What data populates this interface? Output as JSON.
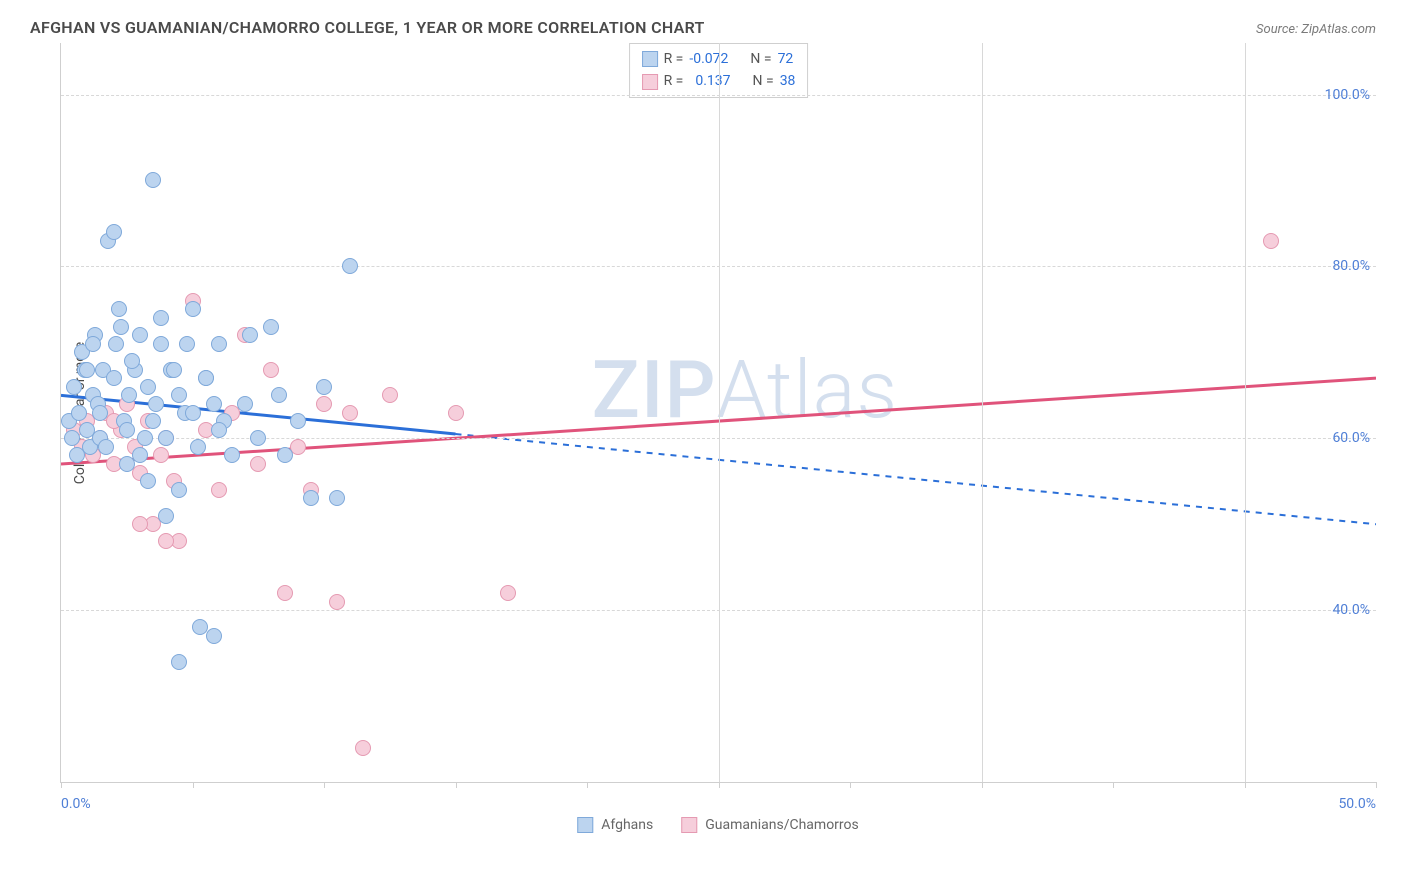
{
  "title": "AFGHAN VS GUAMANIAN/CHAMORRO COLLEGE, 1 YEAR OR MORE CORRELATION CHART",
  "source": "Source: ZipAtlas.com",
  "y_axis_label": "College, 1 year or more",
  "watermark_a": "ZIP",
  "watermark_b": "Atlas",
  "chart": {
    "type": "scatter",
    "x_range": [
      0,
      50
    ],
    "y_range": [
      20,
      106
    ],
    "y_ticks": [
      40,
      60,
      80,
      100
    ],
    "y_tick_labels": [
      "40.0%",
      "60.0%",
      "80.0%",
      "100.0%"
    ],
    "x_ticks": [
      0,
      5,
      10,
      15,
      20,
      25,
      30,
      35,
      40,
      45,
      50
    ],
    "x_labels": {
      "min": "0.0%",
      "max": "50.0%"
    },
    "grid_color": "#d8d8d8",
    "background_color": "#ffffff",
    "point_radius": 8
  },
  "series_a": {
    "name": "Afghans",
    "fill": "#bcd4ef",
    "stroke": "#7fa9da",
    "R": "-0.072",
    "N": "72",
    "trend": {
      "x1": 0,
      "y1": 65,
      "x2": 15,
      "y2": 60.5,
      "x3": 50,
      "y3": 50,
      "solid_until_x": 15,
      "color": "#2b6fd8",
      "width": 3
    },
    "points": [
      [
        0.3,
        62
      ],
      [
        0.4,
        60
      ],
      [
        0.5,
        66
      ],
      [
        0.6,
        58
      ],
      [
        0.7,
        63
      ],
      [
        0.8,
        70
      ],
      [
        0.9,
        68
      ],
      [
        1.0,
        61
      ],
      [
        1.1,
        59
      ],
      [
        1.2,
        65
      ],
      [
        1.3,
        72
      ],
      [
        1.4,
        64
      ],
      [
        1.5,
        60
      ],
      [
        1.6,
        68
      ],
      [
        1.8,
        83
      ],
      [
        2.0,
        84
      ],
      [
        2.1,
        71
      ],
      [
        2.2,
        75
      ],
      [
        2.4,
        62
      ],
      [
        2.5,
        57
      ],
      [
        2.6,
        65
      ],
      [
        2.8,
        68
      ],
      [
        3.0,
        72
      ],
      [
        3.2,
        60
      ],
      [
        3.3,
        55
      ],
      [
        3.5,
        90
      ],
      [
        3.6,
        64
      ],
      [
        3.8,
        71
      ],
      [
        4.0,
        51
      ],
      [
        4.2,
        68
      ],
      [
        4.5,
        54
      ],
      [
        4.7,
        63
      ],
      [
        5.0,
        75
      ],
      [
        5.3,
        38
      ],
      [
        5.5,
        67
      ],
      [
        5.8,
        37
      ],
      [
        6.0,
        71
      ],
      [
        6.2,
        62
      ],
      [
        6.5,
        58
      ],
      [
        7.0,
        64
      ],
      [
        7.2,
        72
      ],
      [
        7.5,
        60
      ],
      [
        8.0,
        73
      ],
      [
        8.3,
        65
      ],
      [
        8.5,
        58
      ],
      [
        9.0,
        62
      ],
      [
        9.5,
        53
      ],
      [
        10.0,
        66
      ],
      [
        10.5,
        53
      ],
      [
        11.0,
        80
      ],
      [
        1.0,
        68
      ],
      [
        1.2,
        71
      ],
      [
        1.5,
        63
      ],
      [
        1.7,
        59
      ],
      [
        2.0,
        67
      ],
      [
        2.3,
        73
      ],
      [
        2.5,
        61
      ],
      [
        2.7,
        69
      ],
      [
        3.0,
        58
      ],
      [
        3.3,
        66
      ],
      [
        3.5,
        62
      ],
      [
        3.8,
        74
      ],
      [
        4.0,
        60
      ],
      [
        4.3,
        68
      ],
      [
        4.5,
        65
      ],
      [
        4.8,
        71
      ],
      [
        5.0,
        63
      ],
      [
        5.2,
        59
      ],
      [
        5.5,
        67
      ],
      [
        5.8,
        64
      ],
      [
        6.0,
        61
      ],
      [
        4.5,
        34
      ]
    ]
  },
  "series_b": {
    "name": "Guamanians/Chamorros",
    "fill": "#f6cedb",
    "stroke": "#e59ab2",
    "R": "0.137",
    "N": "38",
    "trend": {
      "x1": 0,
      "y1": 57,
      "x2": 50,
      "y2": 67,
      "color": "#e0537b",
      "width": 3
    },
    "points": [
      [
        0.5,
        61
      ],
      [
        0.8,
        59
      ],
      [
        1.0,
        62
      ],
      [
        1.2,
        58
      ],
      [
        1.5,
        60
      ],
      [
        1.7,
        63
      ],
      [
        2.0,
        57
      ],
      [
        2.3,
        61
      ],
      [
        2.5,
        64
      ],
      [
        2.8,
        59
      ],
      [
        3.0,
        56
      ],
      [
        3.3,
        62
      ],
      [
        3.5,
        50
      ],
      [
        3.8,
        58
      ],
      [
        4.0,
        60
      ],
      [
        4.3,
        55
      ],
      [
        4.5,
        48
      ],
      [
        5.0,
        76
      ],
      [
        5.5,
        61
      ],
      [
        6.0,
        54
      ],
      [
        6.5,
        63
      ],
      [
        7.0,
        72
      ],
      [
        7.5,
        57
      ],
      [
        8.0,
        68
      ],
      [
        8.5,
        42
      ],
      [
        9.0,
        59
      ],
      [
        9.5,
        54
      ],
      [
        10.0,
        64
      ],
      [
        10.5,
        41
      ],
      [
        11.0,
        63
      ],
      [
        11.5,
        24
      ],
      [
        12.5,
        65
      ],
      [
        15.0,
        63
      ],
      [
        17.0,
        42
      ],
      [
        3.0,
        50
      ],
      [
        4.0,
        48
      ],
      [
        2.0,
        62
      ],
      [
        46.0,
        83
      ]
    ]
  },
  "legend_top_labels": {
    "R": "R =",
    "N": "N ="
  },
  "legend_bottom": [
    {
      "label": "Afghans",
      "fill": "#bcd4ef",
      "stroke": "#7fa9da"
    },
    {
      "label": "Guamanians/Chamorros",
      "fill": "#f6cedb",
      "stroke": "#e59ab2"
    }
  ]
}
